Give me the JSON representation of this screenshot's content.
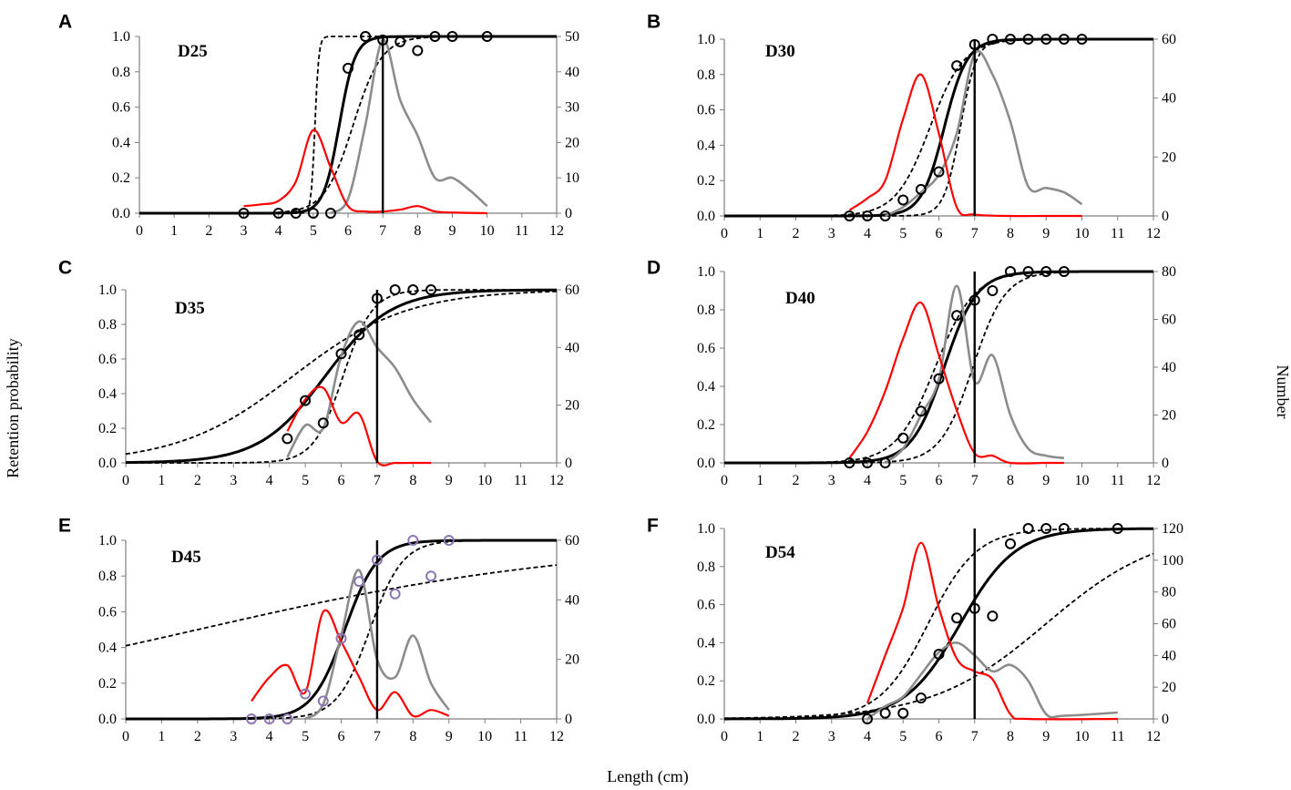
{
  "figure": {
    "xlabel": "Length (cm)",
    "ylabel_left": "Retention probability",
    "ylabel_right": "Number"
  },
  "colors": {
    "fit": "#000000",
    "ci": "#000000",
    "red_curve": "#ff0000",
    "gray_curve": "#8c8c8c",
    "observed_black": "#000000",
    "observed_purple": "#8b76b4",
    "mls_line": "#000000"
  },
  "chart_data": [
    {
      "panel": "A",
      "label": "D25",
      "type": "line",
      "xlim": [
        0,
        12
      ],
      "xticks": [
        "0",
        "1",
        "2",
        "3",
        "4",
        "5",
        "6",
        "7",
        "8",
        "9",
        "10",
        "11",
        "12"
      ],
      "ylim": [
        0,
        1
      ],
      "yticks": [
        "0.0",
        "0.2",
        "0.4",
        "0.6",
        "0.8",
        "1.0"
      ],
      "y2lim": [
        0,
        50
      ],
      "y2ticks": [
        "0",
        "10",
        "20",
        "30",
        "40",
        "50"
      ],
      "mls": 7,
      "fit": {
        "l50": 5.75,
        "sr": 0.5
      },
      "ci": [
        {
          "l50": 5.05,
          "sr": 0.12
        },
        {
          "l50": 6.15,
          "sr": 0.9
        }
      ],
      "observed_color": "black",
      "observed": [
        [
          3,
          0
        ],
        [
          4,
          0
        ],
        [
          4.5,
          0
        ],
        [
          5,
          0
        ],
        [
          5.5,
          0
        ],
        [
          6,
          0.82
        ],
        [
          6.5,
          1.0
        ],
        [
          7,
          0.98
        ],
        [
          7.5,
          0.97
        ],
        [
          8,
          0.92
        ],
        [
          8.5,
          1.0
        ],
        [
          9,
          1.0
        ],
        [
          10,
          1.0
        ]
      ],
      "red": [
        [
          3,
          2
        ],
        [
          3.5,
          2.5
        ],
        [
          4,
          3.5
        ],
        [
          4.5,
          9
        ],
        [
          5,
          23.5
        ],
        [
          5.5,
          13
        ],
        [
          6,
          2
        ],
        [
          6.5,
          0.5
        ],
        [
          7,
          0.5
        ],
        [
          7.5,
          1
        ],
        [
          8,
          2
        ],
        [
          8.5,
          0.5
        ],
        [
          9,
          0.2
        ],
        [
          10,
          0
        ]
      ],
      "gray": [
        [
          5.5,
          0
        ],
        [
          6,
          4
        ],
        [
          6.5,
          25
        ],
        [
          7,
          49
        ],
        [
          7.5,
          32
        ],
        [
          8,
          22
        ],
        [
          8.5,
          10
        ],
        [
          9,
          10
        ],
        [
          9.5,
          6.5
        ],
        [
          10,
          2
        ]
      ]
    },
    {
      "panel": "B",
      "label": "D30",
      "type": "line",
      "xlim": [
        0,
        12
      ],
      "xticks": [
        "0",
        "1",
        "2",
        "3",
        "4",
        "5",
        "6",
        "7",
        "8",
        "9",
        "10",
        "11",
        "12"
      ],
      "ylim": [
        0,
        1
      ],
      "yticks": [
        "0.0",
        "0.2",
        "0.4",
        "0.6",
        "0.8",
        "1.0"
      ],
      "y2lim": [
        0,
        60
      ],
      "y2ticks": [
        "0",
        "20",
        "40",
        "60"
      ],
      "mls": 7,
      "fit": {
        "l50": 6.15,
        "sr": 0.7
      },
      "ci": [
        {
          "l50": 5.75,
          "sr": 1.05
        },
        {
          "l50": 6.6,
          "sr": 0.5
        }
      ],
      "observed_color": "black",
      "observed": [
        [
          3.5,
          0
        ],
        [
          4,
          0
        ],
        [
          4.5,
          0
        ],
        [
          5,
          0.09
        ],
        [
          5.5,
          0.15
        ],
        [
          6,
          0.25
        ],
        [
          6.5,
          0.85
        ],
        [
          7,
          0.97
        ],
        [
          7.5,
          1.0
        ],
        [
          8,
          1.0
        ],
        [
          8.5,
          1.0
        ],
        [
          9,
          1.0
        ],
        [
          9.5,
          1.0
        ],
        [
          10,
          1.0
        ]
      ],
      "red": [
        [
          3.5,
          2
        ],
        [
          4,
          6
        ],
        [
          4.5,
          12
        ],
        [
          5,
          33
        ],
        [
          5.5,
          48
        ],
        [
          6,
          28
        ],
        [
          6.5,
          3
        ],
        [
          7,
          0.5
        ],
        [
          8,
          0
        ],
        [
          9,
          0
        ],
        [
          10,
          0
        ]
      ],
      "gray": [
        [
          4.5,
          0
        ],
        [
          5,
          3
        ],
        [
          5.5,
          8
        ],
        [
          6,
          14
        ],
        [
          6.5,
          28
        ],
        [
          7,
          55
        ],
        [
          7.5,
          48
        ],
        [
          8,
          32
        ],
        [
          8.5,
          10
        ],
        [
          9,
          9.5
        ],
        [
          9.5,
          8
        ],
        [
          10,
          4
        ]
      ]
    },
    {
      "panel": "C",
      "label": "D35",
      "type": "line",
      "xlim": [
        0,
        12
      ],
      "xticks": [
        "0",
        "1",
        "2",
        "3",
        "4",
        "5",
        "6",
        "7",
        "8",
        "9",
        "10",
        "11",
        "12"
      ],
      "ylim": [
        0,
        1
      ],
      "yticks": [
        "0.0",
        "0.2",
        "0.4",
        "0.6",
        "0.8",
        "1.0"
      ],
      "y2lim": [
        0,
        60
      ],
      "y2ticks": [
        "0",
        "20",
        "40",
        "60"
      ],
      "mls": 7,
      "fit": {
        "l50": 5.55,
        "sr": 2.0
      },
      "ci": [
        {
          "l50": 4.65,
          "sr": 3.5
        },
        {
          "l50": 6.05,
          "sr": 0.9
        }
      ],
      "observed_color": "black",
      "observed": [
        [
          4.5,
          0.14
        ],
        [
          5,
          0.36
        ],
        [
          5.5,
          0.23
        ],
        [
          6,
          0.63
        ],
        [
          6.5,
          0.74
        ],
        [
          7,
          0.95
        ],
        [
          7.5,
          1.0
        ],
        [
          8,
          1.0
        ],
        [
          8.5,
          1.0
        ]
      ],
      "red": [
        [
          4.5,
          11
        ],
        [
          5,
          22
        ],
        [
          5.5,
          26
        ],
        [
          6,
          14
        ],
        [
          6.5,
          17
        ],
        [
          7,
          0.5
        ],
        [
          7.5,
          0
        ],
        [
          8,
          0
        ],
        [
          8.5,
          0
        ]
      ],
      "gray": [
        [
          4.5,
          2
        ],
        [
          5,
          13
        ],
        [
          5.5,
          12
        ],
        [
          6,
          37
        ],
        [
          6.5,
          49
        ],
        [
          7,
          40
        ],
        [
          7.5,
          33
        ],
        [
          8,
          22
        ],
        [
          8.5,
          14
        ]
      ]
    },
    {
      "panel": "D",
      "label": "D40",
      "type": "line",
      "xlim": [
        0,
        12
      ],
      "xticks": [
        "0",
        "1",
        "2",
        "3",
        "4",
        "5",
        "6",
        "7",
        "8",
        "9",
        "10",
        "11",
        "12"
      ],
      "ylim": [
        0,
        1
      ],
      "yticks": [
        "0.0",
        "0.2",
        "0.4",
        "0.6",
        "0.8",
        "1.0"
      ],
      "y2lim": [
        0,
        80
      ],
      "y2ticks": [
        "0",
        "20",
        "40",
        "60",
        "80"
      ],
      "mls": 7,
      "fit": {
        "l50": 6.15,
        "sr": 1.0
      },
      "ci": [
        {
          "l50": 5.9,
          "sr": 1.2
        },
        {
          "l50": 6.95,
          "sr": 1.0
        }
      ],
      "observed_color": "black",
      "observed": [
        [
          3.5,
          0
        ],
        [
          4,
          0
        ],
        [
          4.5,
          0
        ],
        [
          5,
          0.13
        ],
        [
          5.5,
          0.27
        ],
        [
          6,
          0.44
        ],
        [
          6.5,
          0.77
        ],
        [
          7,
          0.85
        ],
        [
          7.5,
          0.9
        ],
        [
          8,
          1.0
        ],
        [
          8.5,
          1.0
        ],
        [
          9,
          1.0
        ],
        [
          9.5,
          1.0
        ]
      ],
      "red": [
        [
          3.5,
          2
        ],
        [
          4,
          13
        ],
        [
          4.5,
          30
        ],
        [
          5,
          52
        ],
        [
          5.5,
          67
        ],
        [
          6,
          45
        ],
        [
          6.5,
          22
        ],
        [
          7,
          4
        ],
        [
          7.5,
          3
        ],
        [
          8,
          0
        ],
        [
          9,
          0
        ],
        [
          9.5,
          0
        ]
      ],
      "gray": [
        [
          4.5,
          0
        ],
        [
          5,
          6
        ],
        [
          5.5,
          20
        ],
        [
          6,
          35
        ],
        [
          6.5,
          74
        ],
        [
          7,
          34
        ],
        [
          7.5,
          45
        ],
        [
          8,
          20
        ],
        [
          8.5,
          6
        ],
        [
          9,
          3
        ],
        [
          9.5,
          2
        ]
      ]
    },
    {
      "panel": "E",
      "label": "D45",
      "type": "line",
      "xlim": [
        0,
        12
      ],
      "xticks": [
        "0",
        "1",
        "2",
        "3",
        "4",
        "5",
        "6",
        "7",
        "8",
        "9",
        "10",
        "11",
        "12"
      ],
      "ylim": [
        0,
        1
      ],
      "yticks": [
        "0.0",
        "0.2",
        "0.4",
        "0.6",
        "0.8",
        "1.0"
      ],
      "y2lim": [
        0,
        60
      ],
      "y2ticks": [
        "0",
        "20",
        "40",
        "60"
      ],
      "mls": 7,
      "fit": {
        "l50": 6.1,
        "sr": 1.0
      },
      "ci": [
        {
          "l50": 2.0,
          "sr": 12.0
        },
        {
          "l50": 6.8,
          "sr": 1.0
        }
      ],
      "observed_color": "purple",
      "observed": [
        [
          3.5,
          0
        ],
        [
          4,
          0
        ],
        [
          4.5,
          0
        ],
        [
          5,
          0.14
        ],
        [
          5.5,
          0.1
        ],
        [
          6,
          0.45
        ],
        [
          6.5,
          0.77
        ],
        [
          7,
          0.89
        ],
        [
          7.5,
          0.7
        ],
        [
          8,
          1.0
        ],
        [
          8.5,
          0.8
        ],
        [
          9,
          1.0
        ]
      ],
      "red": [
        [
          3.5,
          6
        ],
        [
          4,
          14
        ],
        [
          4.5,
          18
        ],
        [
          5,
          9
        ],
        [
          5.5,
          36
        ],
        [
          6,
          26
        ],
        [
          6.5,
          14
        ],
        [
          7,
          3
        ],
        [
          7.5,
          9
        ],
        [
          8,
          1
        ],
        [
          8.5,
          3
        ],
        [
          9,
          1
        ]
      ],
      "gray": [
        [
          5,
          0
        ],
        [
          5.5,
          5
        ],
        [
          6,
          28
        ],
        [
          6.5,
          50
        ],
        [
          7,
          20
        ],
        [
          7.5,
          14
        ],
        [
          8,
          28
        ],
        [
          8.5,
          12
        ],
        [
          9,
          3
        ]
      ]
    },
    {
      "panel": "F",
      "label": "D54",
      "type": "line",
      "xlim": [
        0,
        12
      ],
      "xticks": [
        "0",
        "1",
        "2",
        "3",
        "4",
        "5",
        "6",
        "7",
        "8",
        "9",
        "10",
        "11",
        "12"
      ],
      "ylim": [
        0,
        1
      ],
      "yticks": [
        "0.0",
        "0.2",
        "0.4",
        "0.6",
        "0.8",
        "1.0"
      ],
      "y2lim": [
        0,
        120
      ],
      "y2ticks": [
        "0",
        "20",
        "40",
        "60",
        "80",
        "100",
        "120"
      ],
      "mls": 7,
      "fit": {
        "l50": 6.6,
        "sr": 1.7
      },
      "ci": [
        {
          "l50": 5.7,
          "sr": 1.5
        },
        {
          "l50": 9.0,
          "sr": 3.5
        }
      ],
      "observed_color": "black",
      "observed": [
        [
          4,
          0
        ],
        [
          4.5,
          0.03
        ],
        [
          5,
          0.03
        ],
        [
          5.5,
          0.11
        ],
        [
          6,
          0.34
        ],
        [
          6.5,
          0.53
        ],
        [
          7,
          0.58
        ],
        [
          7.5,
          0.54
        ],
        [
          8,
          0.92
        ],
        [
          8.5,
          1.0
        ],
        [
          9,
          1.0
        ],
        [
          9.5,
          1.0
        ],
        [
          11,
          1.0
        ]
      ],
      "red": [
        [
          4,
          10
        ],
        [
          4.5,
          40
        ],
        [
          5,
          70
        ],
        [
          5.5,
          111
        ],
        [
          6,
          70
        ],
        [
          6.5,
          38
        ],
        [
          7,
          30
        ],
        [
          7.5,
          25
        ],
        [
          8,
          3
        ],
        [
          8.5,
          0
        ],
        [
          11,
          0
        ]
      ],
      "gray": [
        [
          4,
          0
        ],
        [
          4.5,
          8
        ],
        [
          5,
          14
        ],
        [
          5.5,
          28
        ],
        [
          6,
          42
        ],
        [
          6.5,
          48
        ],
        [
          7,
          40
        ],
        [
          7.5,
          30
        ],
        [
          8,
          34
        ],
        [
          8.5,
          24
        ],
        [
          9,
          3
        ],
        [
          9.5,
          2
        ],
        [
          11,
          4
        ]
      ]
    }
  ]
}
